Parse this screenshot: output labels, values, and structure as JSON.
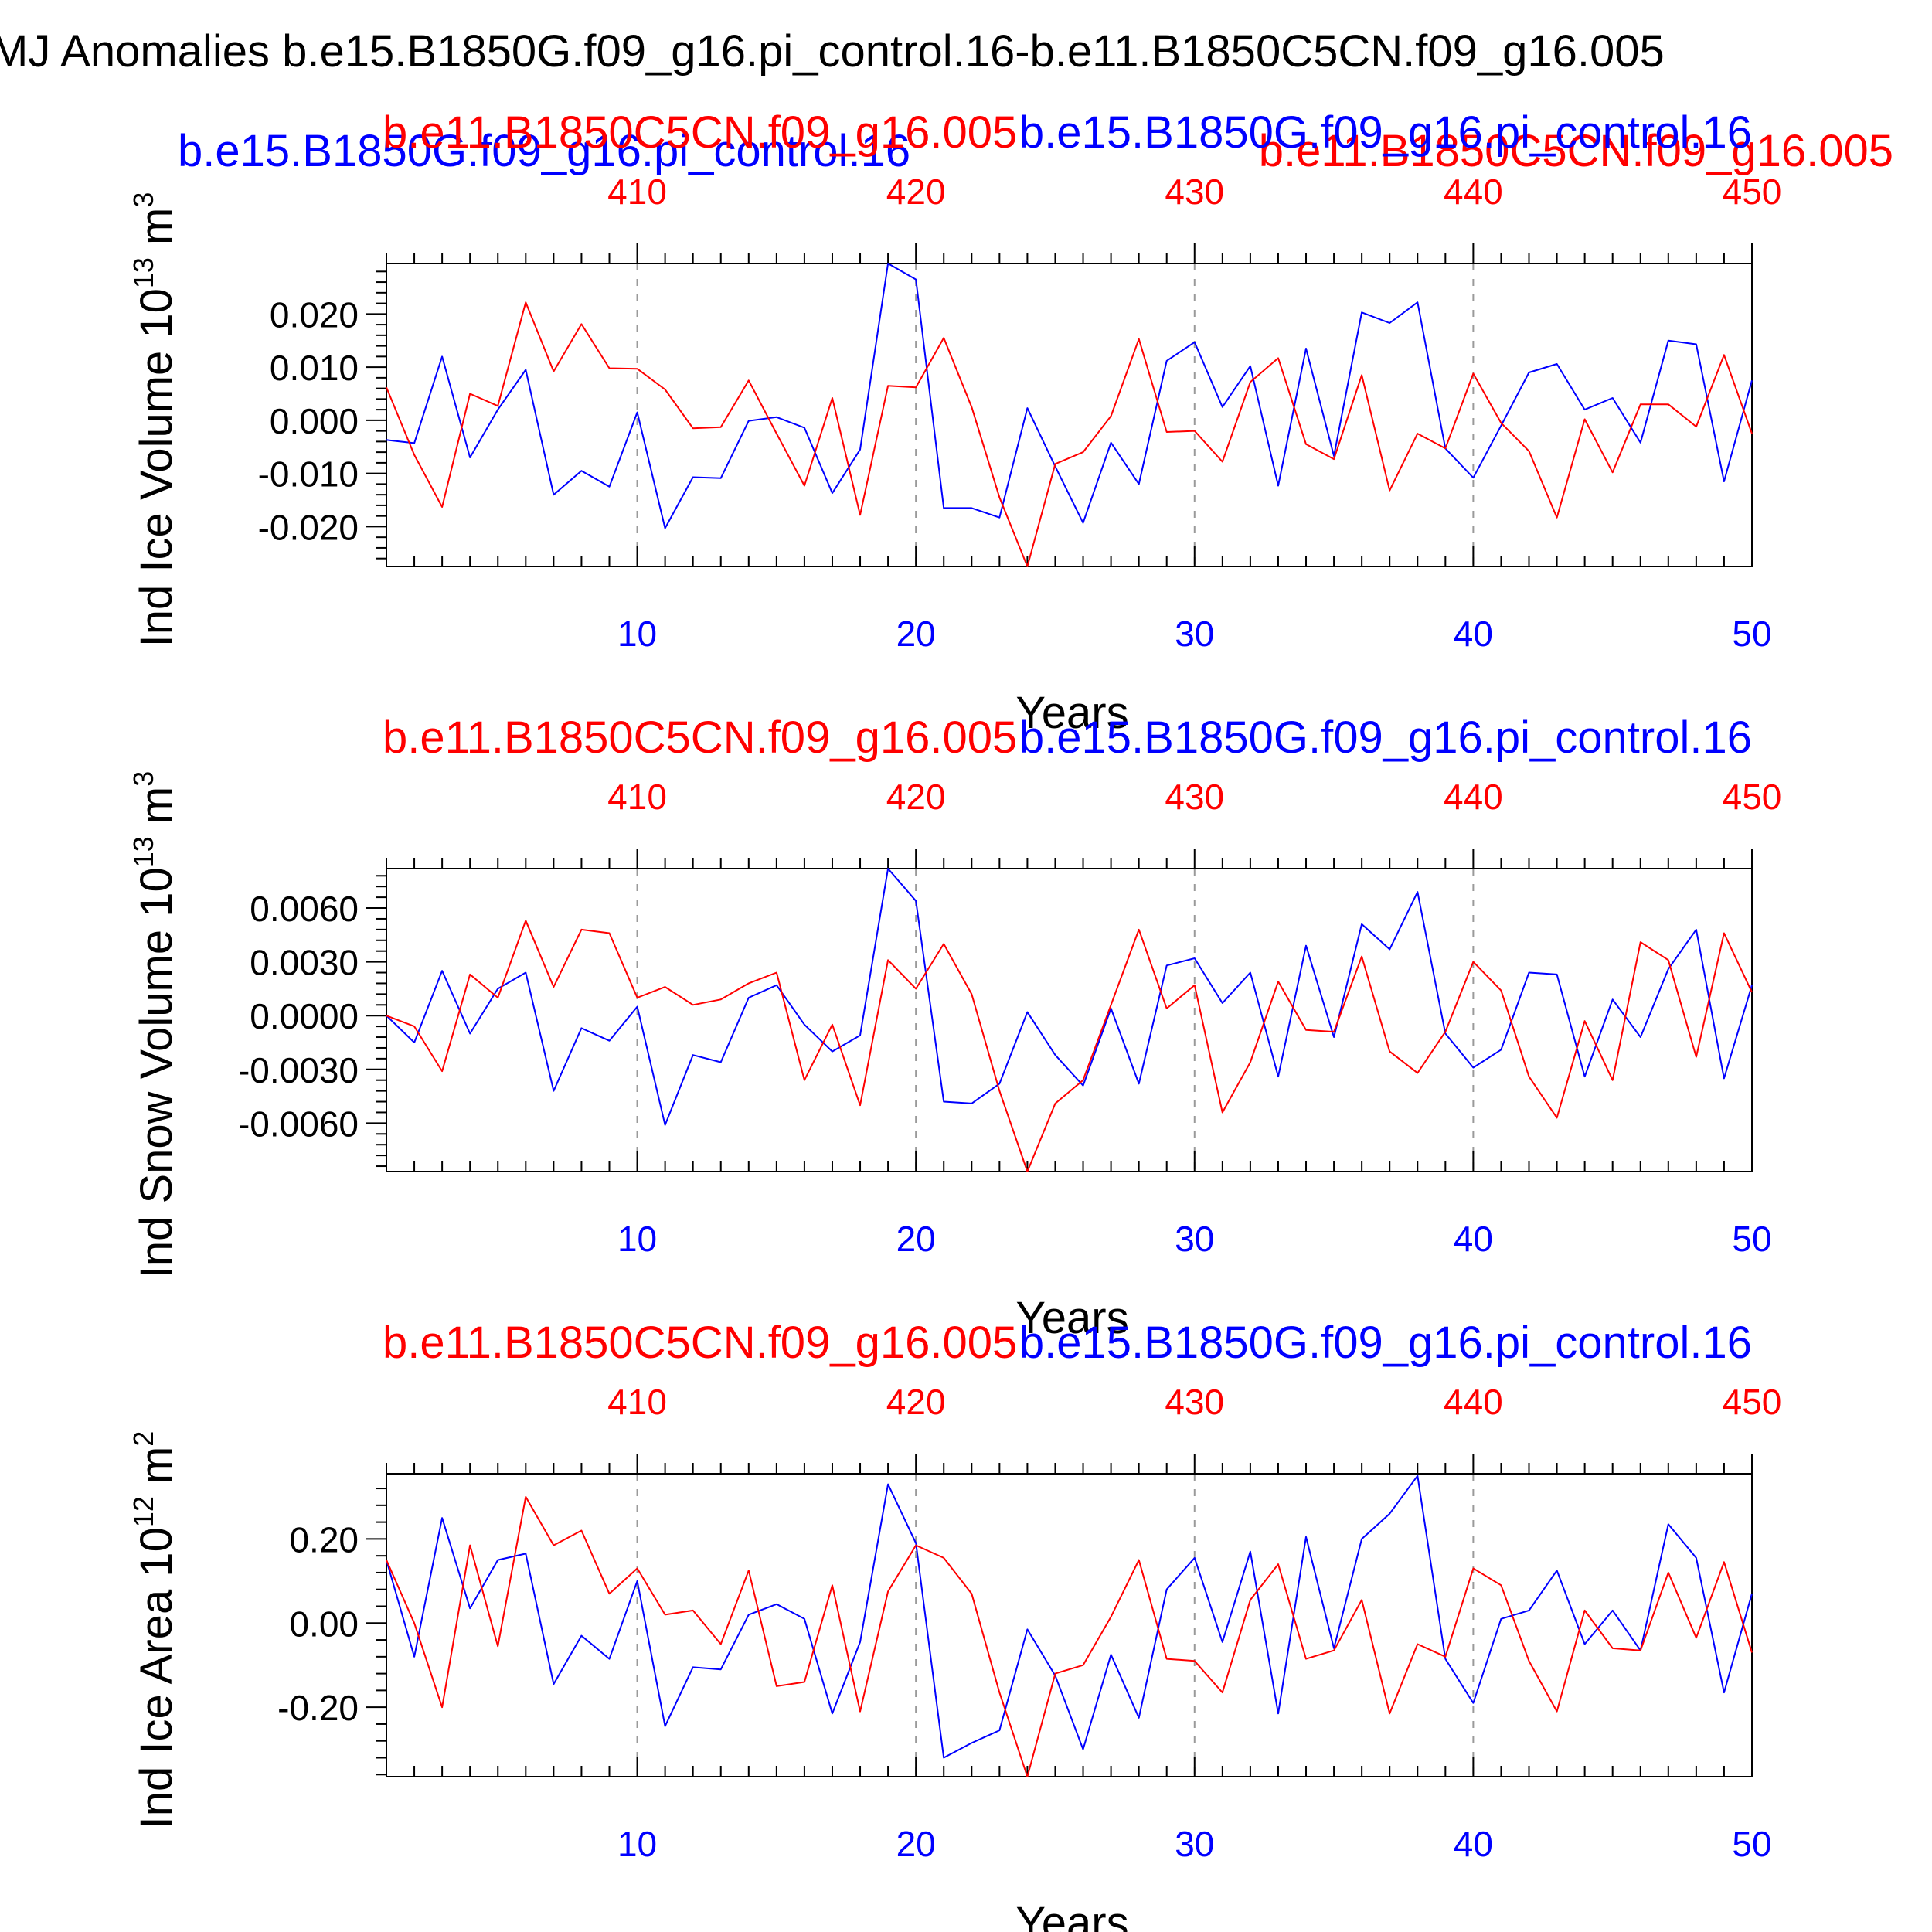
{
  "figure": {
    "title": "MJ Anomalies b.e15.B1850G.f09_g16.pi_control.16-b.e11.B1850C5CN.f09_g16.005",
    "extra_labels": {
      "blue": "b.e15.B1850G.f09_g16.pi_control.16",
      "red": "b.e11.B1850C5CN.f09_g16.005"
    },
    "colors": {
      "case1": "#0000ff",
      "case2": "#ff0000",
      "axis": "#000000",
      "grid": "#9a9a9a"
    }
  },
  "chart_data": [
    {
      "type": "line",
      "ylabel": "Ind Ice Volume 10",
      "ylabel_sup": "13",
      "ylabel_unit": " m",
      "ylabel_unit_sup": "3",
      "xlabel": "Years",
      "xlim": [
        1,
        50
      ],
      "ylim": [
        -0.0275,
        0.0295
      ],
      "bottom_ticks": [
        10,
        20,
        30,
        40,
        50
      ],
      "bottom_tick_labels": [
        "10",
        "20",
        "30",
        "40",
        "50"
      ],
      "top_tick_labels": [
        "410",
        "420",
        "430",
        "440",
        "450"
      ],
      "yticks": [
        -0.02,
        -0.01,
        0.0,
        0.01,
        0.02
      ],
      "ytick_labels": [
        "-0.020",
        "-0.010",
        "0.000",
        "0.010",
        "0.020"
      ],
      "top_left_label": "b.e11.B1850C5CN.f09_g16.005",
      "top_right_label": "b.e15.B1850G.f09_g16.pi_control.16",
      "series": [
        {
          "name": "b.e15.B1850G.f09_g16.pi_control.16",
          "color": "#0000ff",
          "values": [
            -0.0037,
            -0.0043,
            0.012,
            -0.007,
            0.002,
            0.0095,
            -0.014,
            -0.0095,
            -0.0125,
            0.0015,
            -0.0203,
            -0.0107,
            -0.0109,
            -0.0001,
            0.0006,
            -0.0014,
            -0.0137,
            -0.0055,
            0.0295,
            0.0265,
            -0.0165,
            -0.0165,
            -0.0183,
            0.0023,
            -0.0087,
            -0.0193,
            -0.0042,
            -0.012,
            0.0112,
            0.0147,
            0.0025,
            0.0102,
            -0.0123,
            0.0135,
            -0.0067,
            0.0203,
            0.0183,
            0.0222,
            -0.0053,
            -0.0108,
            -0.001,
            0.009,
            0.0106,
            0.002,
            0.0042,
            -0.0042,
            0.015,
            0.0143,
            -0.0115,
            0.0075
          ]
        },
        {
          "name": "b.e11.B1850C5CN.f09_g16.005",
          "color": "#ff0000",
          "values": [
            0.0062,
            -0.0065,
            -0.0163,
            0.005,
            0.0027,
            0.0222,
            0.0092,
            0.0181,
            0.0098,
            0.0097,
            0.0058,
            -0.0015,
            -0.0013,
            0.0075,
            -0.0025,
            -0.0123,
            0.0042,
            -0.0178,
            0.0065,
            0.0062,
            0.0155,
            0.0025,
            -0.0145,
            -0.0275,
            -0.0082,
            -0.006,
            0.0008,
            0.0153,
            -0.0022,
            -0.002,
            -0.0078,
            0.0072,
            0.0117,
            -0.0045,
            -0.0073,
            0.0085,
            -0.0132,
            -0.0025,
            -0.0053,
            0.0088,
            -0.0005,
            -0.0058,
            -0.0183,
            0.0002,
            -0.0098,
            0.003,
            0.003,
            -0.0012,
            0.0123,
            -0.0025
          ]
        }
      ]
    },
    {
      "type": "line",
      "ylabel": "Ind Snow Volume 10",
      "ylabel_sup": "13",
      "ylabel_unit": " m",
      "ylabel_unit_sup": "3",
      "xlabel": "Years",
      "xlim": [
        1,
        50
      ],
      "ylim": [
        -0.0087,
        0.0082
      ],
      "bottom_ticks": [
        10,
        20,
        30,
        40,
        50
      ],
      "bottom_tick_labels": [
        "10",
        "20",
        "30",
        "40",
        "50"
      ],
      "top_tick_labels": [
        "410",
        "420",
        "430",
        "440",
        "450"
      ],
      "yticks": [
        -0.006,
        -0.003,
        0.0,
        0.003,
        0.006
      ],
      "ytick_labels": [
        "-0.0060",
        "-0.0030",
        "0.0000",
        "0.0030",
        "0.0060"
      ],
      "top_left_label": "b.e11.B1850C5CN.f09_g16.005",
      "top_right_label": "b.e15.B1850G.f09_g16.pi_control.16",
      "series": [
        {
          "name": "b.e15.B1850G.f09_g16.pi_control.16",
          "color": "#0000ff",
          "values": [
            0.0,
            -0.0015,
            0.0025,
            -0.001,
            0.0015,
            0.0024,
            -0.0042,
            -0.0007,
            -0.0014,
            0.0005,
            -0.0061,
            -0.0022,
            -0.0026,
            0.001,
            0.0017,
            -0.0005,
            -0.002,
            -0.0011,
            0.0082,
            0.0064,
            -0.0048,
            -0.0049,
            -0.0038,
            0.0002,
            -0.0022,
            -0.0039,
            0.0004,
            -0.0038,
            0.0028,
            0.0032,
            0.0007,
            0.0024,
            -0.0034,
            0.0039,
            -0.0012,
            0.0051,
            0.0037,
            0.0069,
            -0.001,
            -0.0029,
            -0.0019,
            0.0024,
            0.0023,
            -0.0034,
            0.0009,
            -0.0012,
            0.0026,
            0.0048,
            -0.0035,
            0.0017
          ]
        },
        {
          "name": "b.e11.B1850C5CN.f09_g16.005",
          "color": "#ff0000",
          "values": [
            0.0,
            -0.0006,
            -0.0031,
            0.0023,
            0.001,
            0.0053,
            0.0016,
            0.0048,
            0.0046,
            0.001,
            0.0016,
            0.0006,
            0.0009,
            0.0018,
            0.0024,
            -0.0036,
            -0.0005,
            -0.005,
            0.0031,
            0.0015,
            0.004,
            0.0012,
            -0.0042,
            -0.0087,
            -0.0049,
            -0.0036,
            0.0006,
            0.0048,
            0.0004,
            0.0017,
            -0.0054,
            -0.0026,
            0.0019,
            -0.0008,
            -0.0009,
            0.0033,
            -0.002,
            -0.0032,
            -0.0009,
            0.003,
            0.0014,
            -0.0034,
            -0.0057,
            -0.0003,
            -0.0036,
            0.0041,
            0.0031,
            -0.0023,
            0.0046,
            0.0013
          ]
        }
      ]
    },
    {
      "type": "line",
      "ylabel": "Ind Ice Area 10",
      "ylabel_sup": "12",
      "ylabel_unit": " m",
      "ylabel_unit_sup": "2",
      "xlabel": "Years",
      "xlim": [
        1,
        50
      ],
      "ylim": [
        -0.365,
        0.355
      ],
      "bottom_ticks": [
        10,
        20,
        30,
        40,
        50
      ],
      "bottom_tick_labels": [
        "10",
        "20",
        "30",
        "40",
        "50"
      ],
      "top_tick_labels": [
        "410",
        "420",
        "430",
        "440",
        "450"
      ],
      "yticks": [
        -0.2,
        0.0,
        0.2
      ],
      "ytick_labels": [
        "-0.20",
        "0.00",
        "0.20"
      ],
      "top_left_label": "b.e11.B1850C5CN.f09_g16.005",
      "top_right_label": "b.e15.B1850G.f09_g16.pi_control.16",
      "series": [
        {
          "name": "b.e15.B1850G.f09_g16.pi_control.16",
          "color": "#0000ff",
          "values": [
            0.15,
            -0.08,
            0.25,
            0.035,
            0.15,
            0.165,
            -0.145,
            -0.03,
            -0.085,
            0.1,
            -0.245,
            -0.105,
            -0.11,
            0.02,
            0.045,
            0.01,
            -0.215,
            -0.045,
            0.33,
            0.19,
            -0.32,
            -0.285,
            -0.255,
            -0.015,
            -0.125,
            -0.3,
            -0.075,
            -0.225,
            0.08,
            0.155,
            -0.045,
            0.17,
            -0.215,
            0.205,
            -0.06,
            0.2,
            0.26,
            0.35,
            -0.085,
            -0.19,
            0.01,
            0.03,
            0.125,
            -0.05,
            0.03,
            -0.065,
            0.235,
            0.155,
            -0.165,
            0.07
          ]
        },
        {
          "name": "b.e11.B1850C5CN.f09_g16.005",
          "color": "#ff0000",
          "values": [
            0.15,
            0.0,
            -0.2,
            0.185,
            -0.055,
            0.3,
            0.185,
            0.22,
            0.07,
            0.13,
            0.02,
            0.03,
            -0.05,
            0.125,
            -0.15,
            -0.14,
            0.09,
            -0.21,
            0.075,
            0.185,
            0.155,
            0.07,
            -0.165,
            -0.365,
            -0.12,
            -0.1,
            0.015,
            0.15,
            -0.085,
            -0.09,
            -0.165,
            0.055,
            0.14,
            -0.085,
            -0.065,
            0.055,
            -0.215,
            -0.05,
            -0.08,
            0.13,
            0.09,
            -0.09,
            -0.21,
            0.03,
            -0.06,
            -0.065,
            0.12,
            -0.035,
            0.145,
            -0.07
          ]
        }
      ]
    }
  ]
}
